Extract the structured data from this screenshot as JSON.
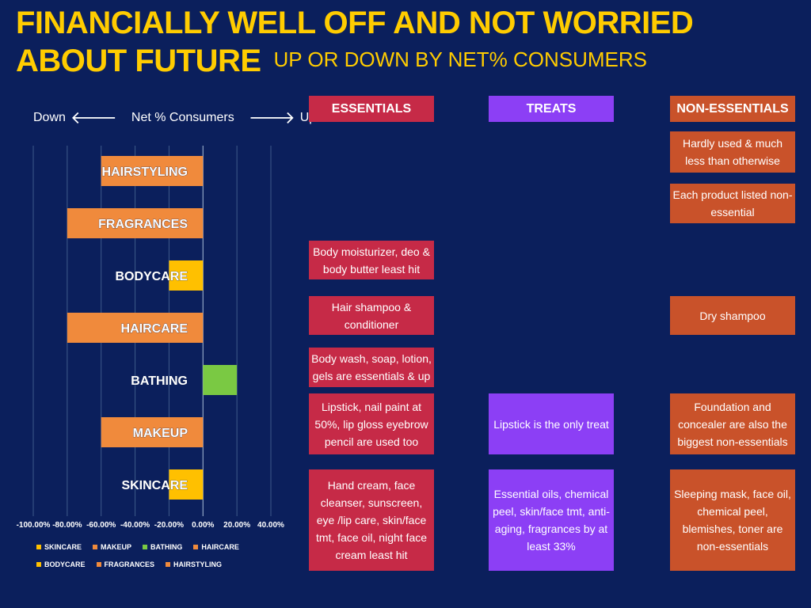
{
  "title": {
    "line1": "FINANCIALLY WELL OFF AND NOT WORRIED",
    "line2": "ABOUT FUTURE",
    "subtitle": "UP OR DOWN BY NET% CONSUMERS"
  },
  "axis_caption": {
    "down": "Down",
    "middle": "Net % Consumers",
    "up": "Up"
  },
  "colors": {
    "background": "#0b1f5c",
    "title": "#ffcc00",
    "orange": "#f08a3c",
    "yellow": "#ffc000",
    "green": "#7ac943",
    "essentials": "#c62a47",
    "treats": "#8c3ff5",
    "non_essentials": "#c9522a"
  },
  "chart_data": {
    "type": "bar",
    "orientation": "horizontal",
    "categories": [
      "HAIRSTYLING",
      "FRAGRANCES",
      "BODYCARE",
      "HAIRCARE",
      "BATHING",
      "MAKEUP",
      "SKINCARE"
    ],
    "values": [
      -60,
      -80,
      -20,
      -80,
      20,
      -60,
      -20
    ],
    "bar_colors": [
      "#f08a3c",
      "#f08a3c",
      "#ffc000",
      "#f08a3c",
      "#7ac943",
      "#f08a3c",
      "#ffc000"
    ],
    "xlim": [
      -100,
      40
    ],
    "xticks": [
      "-100.00%",
      "-80.00%",
      "-60.00%",
      "-40.00%",
      "-20.00%",
      "0.00%",
      "20.00%",
      "40.00%"
    ],
    "xtick_values": [
      -100,
      -80,
      -60,
      -40,
      -20,
      0,
      20,
      40
    ],
    "grid": true,
    "legend_rows": [
      [
        {
          "label": "SKINCARE",
          "color": "#ffc000"
        },
        {
          "label": "MAKEUP",
          "color": "#f08a3c"
        },
        {
          "label": "BATHING",
          "color": "#7ac943"
        },
        {
          "label": "HAIRCARE",
          "color": "#f08a3c"
        }
      ],
      [
        {
          "label": "BODYCARE",
          "color": "#ffc000"
        },
        {
          "label": "FRAGRANCES",
          "color": "#f08a3c"
        },
        {
          "label": "HAIRSTYLING",
          "color": "#f08a3c"
        }
      ]
    ],
    "legend_position": "bottom"
  },
  "columns": {
    "essentials": {
      "header": "ESSENTIALS",
      "boxes": [
        "Body moisturizer, deo & body butter least hit",
        "Hair shampoo & conditioner",
        "Body wash, soap, lotion, gels are essentials & up",
        "Lipstick, nail paint at 50%, lip gloss eyebrow pencil are used too",
        "Hand cream, face cleanser, sunscreen, eye /lip care, skin/face tmt, face oil, night face cream  least hit"
      ]
    },
    "treats": {
      "header": "TREATS",
      "boxes": [
        "Lipstick is the only treat",
        "Essential oils, chemical peel, skin/face tmt, anti-aging, fragrances by at least 33%"
      ]
    },
    "non_essentials": {
      "header": "NON-ESSENTIALS",
      "boxes": [
        "Hardly used &  much less than otherwise",
        "Each product listed non-essential",
        "Dry shampoo",
        "Foundation and concealer are also the biggest non-essentials",
        "Sleeping mask, face oil, chemical peel, blemishes, toner are non-essentials"
      ]
    }
  }
}
